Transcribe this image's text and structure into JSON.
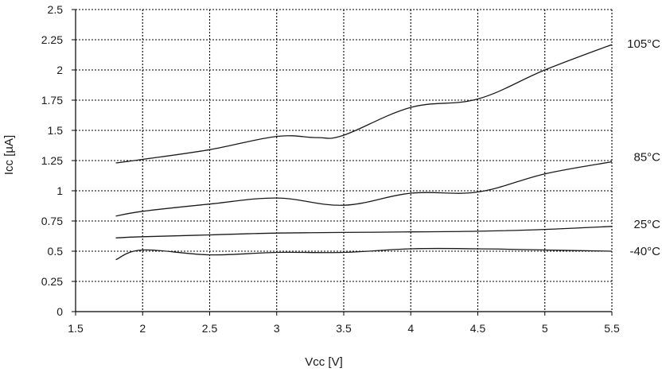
{
  "chart_data": {
    "type": "line",
    "title": "",
    "xlabel": "Vcc [V]",
    "ylabel": "Icc [µA]",
    "xlim": [
      1.5,
      5.5
    ],
    "ylim": [
      0,
      2.5
    ],
    "x_ticks": [
      1.5,
      2,
      2.5,
      3,
      3.5,
      4,
      4.5,
      5,
      5.5
    ],
    "x_tick_labels": [
      "1.5",
      "2",
      "2.5",
      "3",
      "3.5",
      "4",
      "4.5",
      "5",
      "5.5"
    ],
    "y_ticks": [
      0,
      0.25,
      0.5,
      0.75,
      1,
      1.25,
      1.5,
      1.75,
      2,
      2.25,
      2.5
    ],
    "y_tick_labels": [
      "0",
      "0.25",
      "0.5",
      "0.75",
      "1",
      "1.25",
      "1.5",
      "1.75",
      "2",
      "2.25",
      "2.5"
    ],
    "grid": true,
    "legend": "labels at line ends",
    "line_color": "#1a1a1a",
    "grid_color": "#000000",
    "series": [
      {
        "name": "105°C",
        "x": [
          1.8,
          2.0,
          2.5,
          3.0,
          3.3,
          3.5,
          4.0,
          4.5,
          5.0,
          5.5
        ],
        "y": [
          1.23,
          1.26,
          1.34,
          1.45,
          1.44,
          1.46,
          1.69,
          1.76,
          2.0,
          2.21
        ]
      },
      {
        "name": "85°C",
        "x": [
          1.8,
          2.0,
          2.5,
          3.0,
          3.5,
          4.0,
          4.5,
          5.0,
          5.5
        ],
        "y": [
          0.79,
          0.83,
          0.89,
          0.94,
          0.88,
          0.98,
          0.99,
          1.14,
          1.24
        ]
      },
      {
        "name": "25°C",
        "x": [
          1.8,
          2.0,
          2.5,
          3.0,
          3.5,
          4.0,
          4.5,
          5.0,
          5.5
        ],
        "y": [
          0.61,
          0.62,
          0.635,
          0.65,
          0.655,
          0.66,
          0.665,
          0.68,
          0.705
        ]
      },
      {
        "name": "-40°C",
        "x": [
          1.8,
          2.0,
          2.5,
          3.0,
          3.5,
          4.0,
          4.5,
          5.0,
          5.5
        ],
        "y": [
          0.43,
          0.51,
          0.47,
          0.49,
          0.49,
          0.52,
          0.52,
          0.51,
          0.5
        ]
      }
    ]
  }
}
